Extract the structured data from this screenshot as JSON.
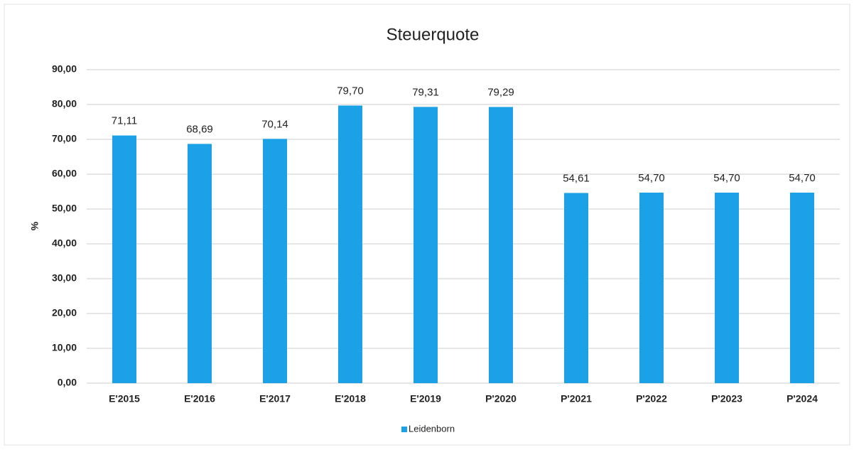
{
  "chart_data": {
    "type": "bar",
    "title": "Steuerquote",
    "y_label": "%",
    "categories": [
      "E'2015",
      "E'2016",
      "E'2017",
      "E'2018",
      "E'2019",
      "P'2020",
      "P'2021",
      "P'2022",
      "P'2023",
      "P'2024"
    ],
    "series": [
      {
        "name": "Leidenborn",
        "color": "#1aa1e6",
        "values": [
          71.11,
          68.69,
          70.14,
          79.7,
          79.31,
          79.29,
          54.61,
          54.7,
          54.7,
          54.7
        ],
        "value_labels": [
          "71,11",
          "68,69",
          "70,14",
          "79,70",
          "79,31",
          "79,29",
          "54,61",
          "54,70",
          "54,70",
          "54,70"
        ]
      }
    ],
    "ylim": [
      0,
      90
    ],
    "yticks": [
      {
        "value": 0,
        "label": "0,00"
      },
      {
        "value": 10,
        "label": "10,00"
      },
      {
        "value": 20,
        "label": "20,00"
      },
      {
        "value": 30,
        "label": "30,00"
      },
      {
        "value": 40,
        "label": "40,00"
      },
      {
        "value": 50,
        "label": "50,00"
      },
      {
        "value": 60,
        "label": "60,00"
      },
      {
        "value": 70,
        "label": "70,00"
      },
      {
        "value": 80,
        "label": "80,00"
      },
      {
        "value": 90,
        "label": "90,00"
      }
    ],
    "grid": true,
    "legend": "bottom"
  }
}
